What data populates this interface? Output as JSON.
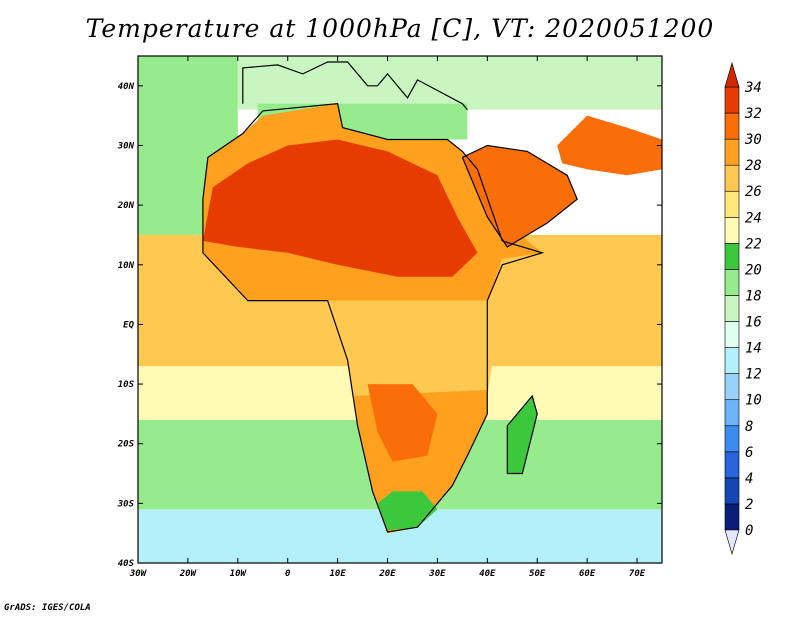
{
  "title": "Temperature at 1000hPa [C], VT: 2020051200",
  "credit": "GrADS: IGES/COLA",
  "map": {
    "lon_range": [
      -30,
      75
    ],
    "lat_range": [
      -40,
      45
    ],
    "lat_ticks": [
      {
        "value": 40,
        "label": "40N"
      },
      {
        "value": 30,
        "label": "30N"
      },
      {
        "value": 20,
        "label": "20N"
      },
      {
        "value": 10,
        "label": "10N"
      },
      {
        "value": 0,
        "label": "EQ"
      },
      {
        "value": -10,
        "label": "10S"
      },
      {
        "value": -20,
        "label": "20S"
      },
      {
        "value": -30,
        "label": "30S"
      },
      {
        "value": -40,
        "label": "40S"
      }
    ],
    "lon_ticks": [
      {
        "value": -30,
        "label": "30W"
      },
      {
        "value": -20,
        "label": "20W"
      },
      {
        "value": -10,
        "label": "10W"
      },
      {
        "value": 0,
        "label": "0"
      },
      {
        "value": 10,
        "label": "10E"
      },
      {
        "value": 20,
        "label": "20E"
      },
      {
        "value": 30,
        "label": "30E"
      },
      {
        "value": 40,
        "label": "40E"
      },
      {
        "value": 50,
        "label": "50E"
      },
      {
        "value": 60,
        "label": "60E"
      },
      {
        "value": 70,
        "label": "70E"
      }
    ]
  },
  "colorbar": {
    "labels": [
      "0",
      "2",
      "4",
      "6",
      "8",
      "10",
      "12",
      "14",
      "16",
      "18",
      "20",
      "22",
      "24",
      "26",
      "28",
      "30",
      "32",
      "34"
    ],
    "bins": [
      {
        "min": 0,
        "max": 2,
        "color": "#0a1e78"
      },
      {
        "min": 2,
        "max": 4,
        "color": "#1446b4"
      },
      {
        "min": 4,
        "max": 6,
        "color": "#2864dc"
      },
      {
        "min": 6,
        "max": 8,
        "color": "#3c8cf0"
      },
      {
        "min": 8,
        "max": 10,
        "color": "#6eb4fa"
      },
      {
        "min": 10,
        "max": 12,
        "color": "#96d2fa"
      },
      {
        "min": 12,
        "max": 14,
        "color": "#b4f0fa"
      },
      {
        "min": 14,
        "max": 16,
        "color": "#e1fff0"
      },
      {
        "min": 16,
        "max": 18,
        "color": "#c8f5c0"
      },
      {
        "min": 18,
        "max": 20,
        "color": "#96eb8c"
      },
      {
        "min": 20,
        "max": 22,
        "color": "#3cc83c"
      },
      {
        "min": 22,
        "max": 24,
        "color": "#fffab4"
      },
      {
        "min": 24,
        "max": 26,
        "color": "#ffe678"
      },
      {
        "min": 26,
        "max": 28,
        "color": "#ffc850"
      },
      {
        "min": 28,
        "max": 30,
        "color": "#ffa01e"
      },
      {
        "min": 30,
        "max": 32,
        "color": "#fa6e0a"
      },
      {
        "min": 32,
        "max": 34,
        "color": "#e63c00"
      }
    ],
    "under_color": "#e6e6fa",
    "over_color": "#d22800"
  },
  "regions": [
    {
      "name": "south-ocean-blue",
      "value": 13,
      "shape": "rect"
    },
    {
      "name": "s-atlantic-green",
      "value": 19,
      "shape": "rect"
    },
    {
      "name": "s-atlantic-yellow",
      "value": 23,
      "shape": "rect"
    },
    {
      "name": "tropical-ocean",
      "value": 27,
      "shape": "rect"
    },
    {
      "name": "n-atlantic-green",
      "value": 19,
      "shape": "rect"
    },
    {
      "name": "europe",
      "value": 17,
      "shape": "rect"
    },
    {
      "name": "mediterranean",
      "value": 19,
      "shape": "rect"
    },
    {
      "name": "n-africa",
      "value": 29,
      "shape": "poly"
    },
    {
      "name": "central-africa",
      "value": 27,
      "shape": "poly"
    },
    {
      "name": "southern-africa",
      "value": 28,
      "shape": "poly"
    },
    {
      "name": "sahara-hot",
      "value": 33,
      "shape": "poly"
    },
    {
      "name": "arabia-hot",
      "value": 31,
      "shape": "poly"
    },
    {
      "name": "iran-hot",
      "value": 31,
      "shape": "poly"
    },
    {
      "name": "kalahari-hot",
      "value": 31,
      "shape": "poly"
    },
    {
      "name": "madagascar",
      "value": 20,
      "shape": "poly"
    },
    {
      "name": "southern-tip",
      "value": 21,
      "shape": "poly"
    }
  ]
}
